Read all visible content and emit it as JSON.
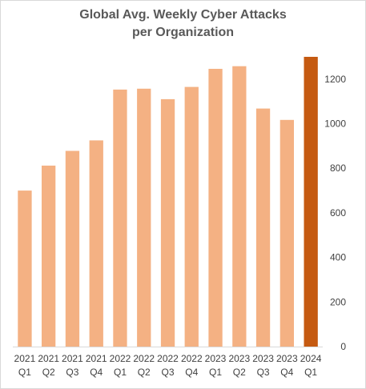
{
  "chart_data": {
    "type": "bar",
    "title_line1": "Global Avg. Weekly Cyber Attacks",
    "title_line2": "per Organization",
    "categories": [
      {
        "year": "2021",
        "quarter": "Q1"
      },
      {
        "year": "2021",
        "quarter": "Q2"
      },
      {
        "year": "2021",
        "quarter": "Q3"
      },
      {
        "year": "2021",
        "quarter": "Q4"
      },
      {
        "year": "2022",
        "quarter": "Q1"
      },
      {
        "year": "2022",
        "quarter": "Q2"
      },
      {
        "year": "2022",
        "quarter": "Q3"
      },
      {
        "year": "2022",
        "quarter": "Q4"
      },
      {
        "year": "2023",
        "quarter": "Q1"
      },
      {
        "year": "2023",
        "quarter": "Q2"
      },
      {
        "year": "2023",
        "quarter": "Q3"
      },
      {
        "year": "2023",
        "quarter": "Q4"
      },
      {
        "year": "2024",
        "quarter": "Q1"
      }
    ],
    "values": [
      700,
      812,
      878,
      925,
      1153,
      1157,
      1110,
      1165,
      1246,
      1258,
      1068,
      1017,
      1300
    ],
    "highlight_index": 12,
    "ylim": [
      0,
      1300
    ],
    "yticks": [
      "0",
      "200",
      "400",
      "600",
      "800",
      "1000",
      "1200"
    ],
    "y_axis_position": "right",
    "grid": false,
    "legend": "none",
    "colors": {
      "bar": "#f4b183",
      "highlight": "#c55a11",
      "axis": "#d9d9d9",
      "text": "#404040",
      "title": "#595959"
    }
  }
}
